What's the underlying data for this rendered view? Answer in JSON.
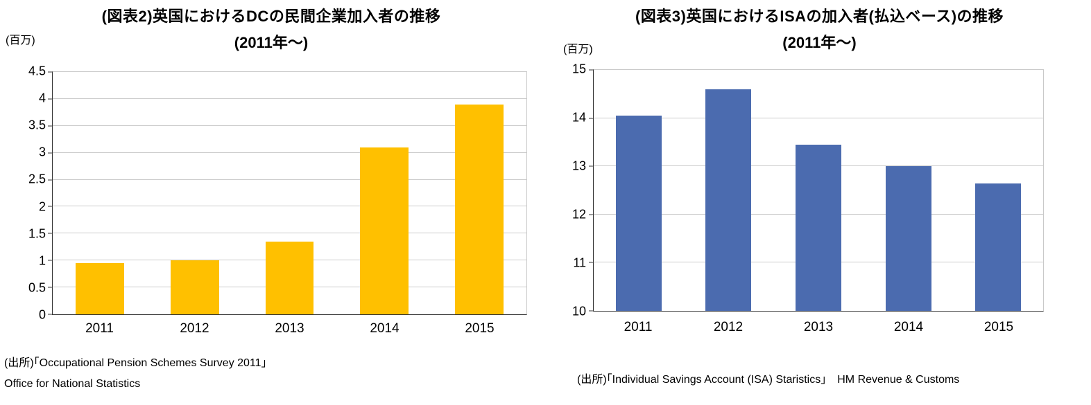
{
  "chart_data": [
    {
      "type": "bar",
      "title": "(図表2)英国におけるDCの民間企業加入者の推移",
      "subtitle": "(2011年～)",
      "unit_label": "(百万)",
      "categories": [
        "2011",
        "2012",
        "2013",
        "2014",
        "2015"
      ],
      "values": [
        0.95,
        1.0,
        1.35,
        3.1,
        3.9
      ],
      "ylim": [
        0,
        4.5
      ],
      "ytick": 0.5,
      "bar_color": "#FFC000",
      "grid": true,
      "legend": "none",
      "sources": [
        "(出所)｢Occupational Pension Schemes Survey 2011｣",
        " Office for National Statistics"
      ]
    },
    {
      "type": "bar",
      "title": "(図表3)英国におけるISAの加入者(払込ベース)の推移",
      "subtitle": "(2011年～)",
      "unit_label": "(百万)",
      "categories": [
        "2011",
        "2012",
        "2013",
        "2014",
        "2015"
      ],
      "values": [
        14.05,
        14.6,
        13.45,
        13.0,
        12.65
      ],
      "ylim": [
        10,
        15
      ],
      "ytick": 1,
      "bar_color": "#4b6baf",
      "grid": true,
      "legend": "none",
      "sources": [
        "(出所)｢Individual Savings Account (ISA) Staristics｣　HM Revenue & Customs"
      ]
    }
  ]
}
